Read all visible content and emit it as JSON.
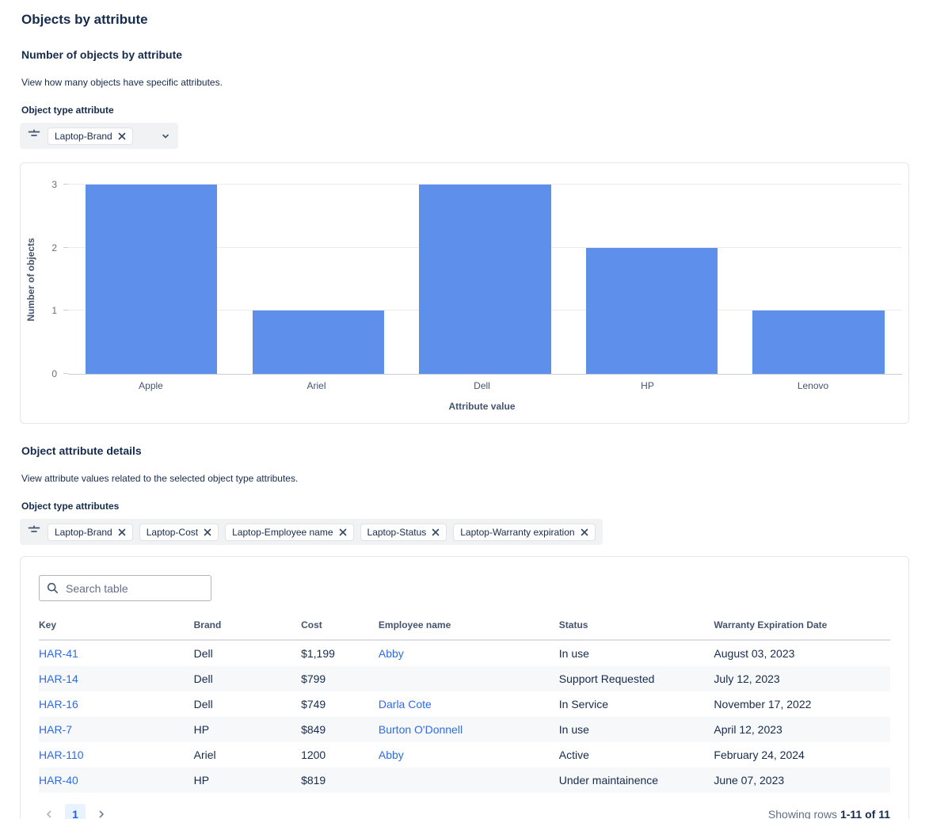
{
  "page": {
    "title": "Objects by attribute"
  },
  "chart_section": {
    "heading": "Number of objects by attribute",
    "description": "View how many objects have specific attributes.",
    "filter_label": "Object type attribute",
    "filter_tags": [
      "Laptop-Brand"
    ]
  },
  "chart_data": {
    "type": "bar",
    "categories": [
      "Apple",
      "Ariel",
      "Dell",
      "HP",
      "Lenovo"
    ],
    "values": [
      3,
      1,
      3,
      2,
      1
    ],
    "title": "",
    "xlabel": "Attribute value",
    "ylabel": "Number of objects",
    "ylim": [
      0,
      3
    ],
    "yticks": [
      0,
      1,
      2,
      3
    ],
    "grid": true,
    "legend": false,
    "bar_color": "#5E8FEA"
  },
  "details_section": {
    "heading": "Object attribute details",
    "description": "View attribute values related to the selected object type attributes.",
    "filter_label": "Object type attributes",
    "filter_tags": [
      "Laptop-Brand",
      "Laptop-Cost",
      "Laptop-Employee name",
      "Laptop-Status",
      "Laptop-Warranty expiration"
    ]
  },
  "table": {
    "search_placeholder": "Search table",
    "columns": [
      "Key",
      "Brand",
      "Cost",
      "Employee name",
      "Status",
      "Warranty Expiration Date"
    ],
    "link_columns": [
      0,
      3
    ],
    "rows": [
      [
        "HAR-41",
        "Dell",
        "$1,199",
        "Abby",
        "In use",
        "August 03, 2023"
      ],
      [
        "HAR-14",
        "Dell",
        "$799",
        "",
        "Support Requested",
        "July 12, 2023"
      ],
      [
        "HAR-16",
        "Dell",
        "$749",
        "Darla Cote",
        "In Service",
        "November 17, 2022"
      ],
      [
        "HAR-7",
        "HP",
        "$849",
        "Burton O'Donnell",
        "In use",
        "April 12, 2023"
      ],
      [
        "HAR-110",
        "Ariel",
        "1200",
        "Abby",
        "Active",
        "February 24, 2024"
      ],
      [
        "HAR-40",
        "HP",
        "$819",
        "",
        "Under maintainence",
        "June 07, 2023"
      ]
    ],
    "pagination": {
      "current_page": "1"
    },
    "showing_label": "Showing rows",
    "showing_range": "1-11 of 11"
  },
  "colors": {
    "bar": "#5E8FEA",
    "link": "#2E6BE4",
    "heading": "#172B4D",
    "muted": "#626F86",
    "row_stripe": "#F7F8F9",
    "current_page_bg": "#E9F2FF"
  }
}
